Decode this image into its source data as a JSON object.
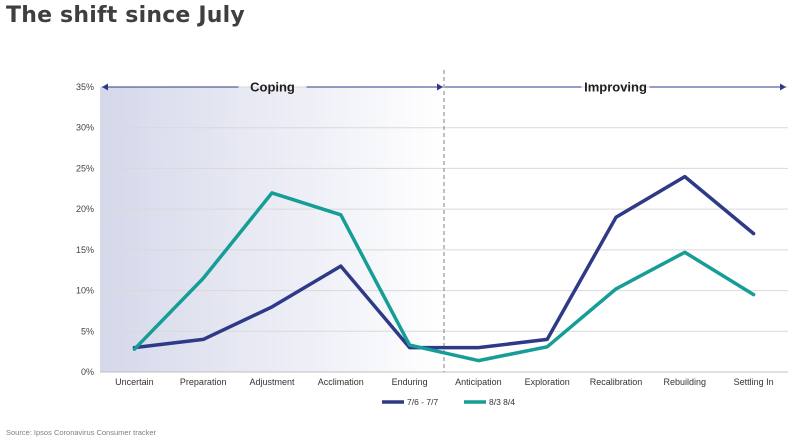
{
  "title": "The shift since July",
  "source": "Source: Ipsos Coronavirus Consumer tracker",
  "chart_data": {
    "type": "line",
    "categories": [
      "Uncertain",
      "Preparation",
      "Adjustment",
      "Acclimation",
      "Enduring",
      "Anticipation",
      "Exploration",
      "Recalibration",
      "Rebuilding",
      "Settling In"
    ],
    "yticks": [
      "0%",
      "5%",
      "10%",
      "15%",
      "20%",
      "25%",
      "30%",
      "35%"
    ],
    "ylim": [
      0,
      35
    ],
    "grid": true,
    "legend_position": "bottom",
    "phases": [
      {
        "label": "Coping",
        "start": 0,
        "end": 4
      },
      {
        "label": "Improving",
        "start": 5,
        "end": 9
      }
    ],
    "series": [
      {
        "name": "7/6 - 7/7",
        "color": "#2e3a87",
        "values": [
          3,
          4,
          8,
          13,
          3,
          3,
          4,
          19,
          24,
          17
        ]
      },
      {
        "name": "8/3 8/4",
        "color": "#159d96",
        "values": [
          2.8,
          11.5,
          22,
          19.3,
          3.3,
          1.4,
          3.1,
          10.2,
          14.7,
          9.5
        ]
      }
    ],
    "colors": {
      "coping_band_start": "#d5d8ea",
      "coping_band_end": "#ffffff",
      "arrow": "#2e3a87",
      "divider": "#7f7f7f",
      "grid": "#d9d9d9"
    }
  }
}
